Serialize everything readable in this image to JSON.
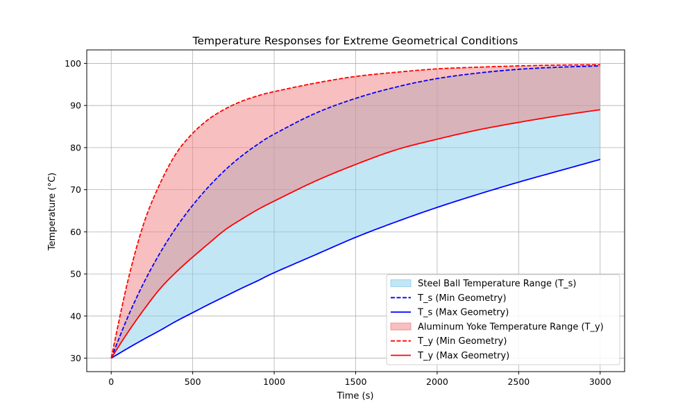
{
  "chart_data": {
    "type": "line",
    "title": "Temperature Responses for Extreme Geometrical Conditions",
    "xlabel": "Time (s)",
    "ylabel": "Temperature (°C)",
    "xlim": [
      -150,
      3150
    ],
    "ylim": [
      26.8,
      103.2
    ],
    "xticks": [
      0,
      500,
      1000,
      1500,
      2000,
      2500,
      3000
    ],
    "yticks": [
      30,
      40,
      50,
      60,
      70,
      80,
      90,
      100
    ],
    "grid": true,
    "legend_position": "lower-right",
    "x": [
      0,
      100,
      200,
      300,
      400,
      500,
      600,
      700,
      800,
      900,
      1000,
      1250,
      1500,
      1750,
      2000,
      2250,
      2500,
      2750,
      3000
    ],
    "bands": [
      {
        "name": "Steel Ball Temperature Range (T_s)",
        "color": "#87ceeb",
        "opacity": 0.5,
        "lower": "T_s (Max Geometry)",
        "upper": "T_s (Min Geometry)"
      },
      {
        "name": "Aluminum Yoke Temperature Range (T_y)",
        "color": "#f08080",
        "opacity": 0.5,
        "lower": "T_y (Max Geometry)",
        "upper": "T_y (Min Geometry)"
      }
    ],
    "series": [
      {
        "name": "T_s (Min Geometry)",
        "color": "#0000ff",
        "dash": "dashed",
        "values": [
          30,
          39.6,
          47.9,
          55.0,
          61.1,
          66.3,
          70.8,
          74.7,
          78.0,
          80.8,
          83.2,
          88.1,
          91.7,
          94.4,
          96.4,
          97.7,
          98.6,
          99.1,
          99.4
        ]
      },
      {
        "name": "T_s (Max Geometry)",
        "color": "#0000ff",
        "dash": "solid",
        "values": [
          30,
          32.3,
          34.5,
          36.6,
          38.8,
          40.8,
          42.8,
          44.7,
          46.6,
          48.4,
          50.3,
          54.5,
          58.7,
          62.4,
          65.8,
          68.9,
          71.8,
          74.5,
          77.2
        ]
      },
      {
        "name": "T_y (Min Geometry)",
        "color": "#ff0000",
        "dash": "dashed",
        "values": [
          30,
          48.0,
          62.0,
          71.5,
          78.7,
          83.4,
          86.8,
          89.2,
          91.0,
          92.3,
          93.3,
          95.3,
          96.9,
          97.9,
          98.7,
          99.1,
          99.4,
          99.6,
          99.7
        ]
      },
      {
        "name": "T_y (Max Geometry)",
        "color": "#ff0000",
        "dash": "solid",
        "values": [
          30,
          36.0,
          41.5,
          46.5,
          50.5,
          54.0,
          57.3,
          60.5,
          63.0,
          65.3,
          67.3,
          72.0,
          76.0,
          79.5,
          82.0,
          84.2,
          86.0,
          87.6,
          89.0
        ]
      }
    ]
  }
}
